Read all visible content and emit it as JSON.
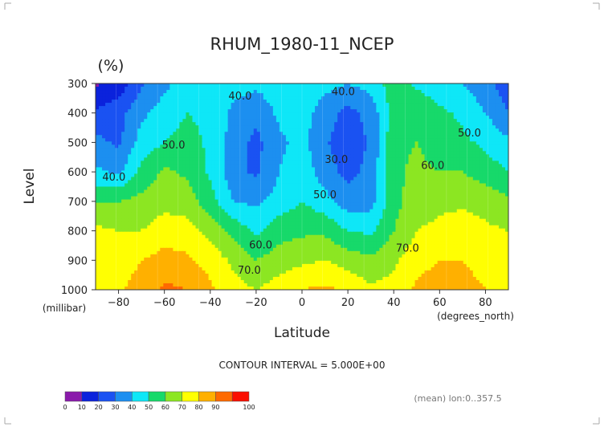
{
  "chart_data": {
    "type": "heatmap",
    "title": "RHUM_1980-11_NCEP",
    "units": "(%)",
    "xlabel": "Latitude",
    "ylabel": "Level",
    "x_units": "(degrees_north)",
    "y_units": "(millibar)",
    "xlim": [
      -90,
      90
    ],
    "ylim": [
      1000,
      300
    ],
    "x_ticks": [
      -80,
      -60,
      -40,
      -20,
      0,
      20,
      40,
      60,
      80
    ],
    "x_tick_labels": [
      "−80",
      "−60",
      "−40",
      "−20",
      "0",
      "20",
      "40",
      "60",
      "80"
    ],
    "y_ticks": [
      300,
      400,
      500,
      600,
      700,
      800,
      900,
      1000
    ],
    "y_tick_labels": [
      "300",
      "400",
      "500",
      "600",
      "700",
      "800",
      "900",
      "1000"
    ],
    "contour_interval_text": "CONTOUR INTERVAL = 5.000E+00",
    "averaging_note": "(mean) lon:0..357.5",
    "contour_labels": [
      {
        "text": "40.0",
        "lat": -27,
        "level": 355
      },
      {
        "text": "40.0",
        "lat": 18,
        "level": 340
      },
      {
        "text": "50.0",
        "lat": -56,
        "level": 520
      },
      {
        "text": "50.0",
        "lat": 73,
        "level": 480
      },
      {
        "text": "40.0",
        "lat": -82,
        "level": 630
      },
      {
        "text": "30.0",
        "lat": 15,
        "level": 570
      },
      {
        "text": "60.0",
        "lat": 57,
        "level": 590
      },
      {
        "text": "50.0",
        "lat": 10,
        "level": 690
      },
      {
        "text": "60.0",
        "lat": -18,
        "level": 860
      },
      {
        "text": "70.0",
        "lat": -23,
        "level": 945
      },
      {
        "text": "70.0",
        "lat": 46,
        "level": 870
      }
    ],
    "levels": [
      300,
      400,
      500,
      600,
      700,
      800,
      900,
      1000
    ],
    "latitudes": [
      -90,
      -80,
      -70,
      -60,
      -50,
      -40,
      -30,
      -20,
      -10,
      0,
      10,
      20,
      30,
      40,
      50,
      60,
      70,
      80,
      90
    ],
    "values": [
      [
        8,
        14,
        28,
        38,
        44,
        47,
        44,
        42,
        46,
        49,
        44,
        40,
        44,
        55,
        48,
        44,
        40,
        33,
        25
      ],
      [
        22,
        26,
        38,
        44,
        50,
        47,
        38,
        33,
        42,
        45,
        34,
        27,
        33,
        55,
        58,
        52,
        48,
        40,
        30
      ],
      [
        33,
        28,
        44,
        50,
        54,
        48,
        36,
        27,
        38,
        43,
        31,
        25,
        31,
        58,
        60,
        56,
        52,
        48,
        42
      ],
      [
        42,
        38,
        53,
        62,
        58,
        48,
        34,
        28,
        40,
        47,
        34,
        27,
        33,
        58,
        62,
        60,
        60,
        55,
        50
      ],
      [
        60,
        60,
        63,
        67,
        65,
        54,
        40,
        38,
        44,
        50,
        44,
        34,
        36,
        56,
        66,
        68,
        68,
        66,
        62
      ],
      [
        72,
        70,
        70,
        75,
        74,
        66,
        57,
        48,
        56,
        58,
        58,
        50,
        48,
        60,
        70,
        72,
        75,
        72,
        70
      ],
      [
        76,
        74,
        80,
        84,
        82,
        76,
        68,
        60,
        65,
        68,
        70,
        66,
        62,
        68,
        76,
        80,
        80,
        76,
        74
      ],
      [
        80,
        78,
        85,
        92,
        90,
        82,
        74,
        70,
        75,
        80,
        82,
        78,
        72,
        74,
        82,
        86,
        84,
        80,
        78
      ]
    ],
    "colorbar": {
      "bounds": [
        0,
        10,
        20,
        30,
        40,
        50,
        60,
        70,
        80,
        90,
        100
      ],
      "tick_labels": [
        "0",
        "10",
        "20",
        "30",
        "40",
        "50",
        "60",
        "70",
        "80",
        "90",
        "100"
      ],
      "colors": [
        "#8a1aab",
        "#0b22dc",
        "#1a52f2",
        "#1c8ff0",
        "#0ee7f7",
        "#17d96a",
        "#8ce622",
        "#ffff02",
        "#ffb000",
        "#fe6a00",
        "#fa0e00"
      ]
    }
  }
}
